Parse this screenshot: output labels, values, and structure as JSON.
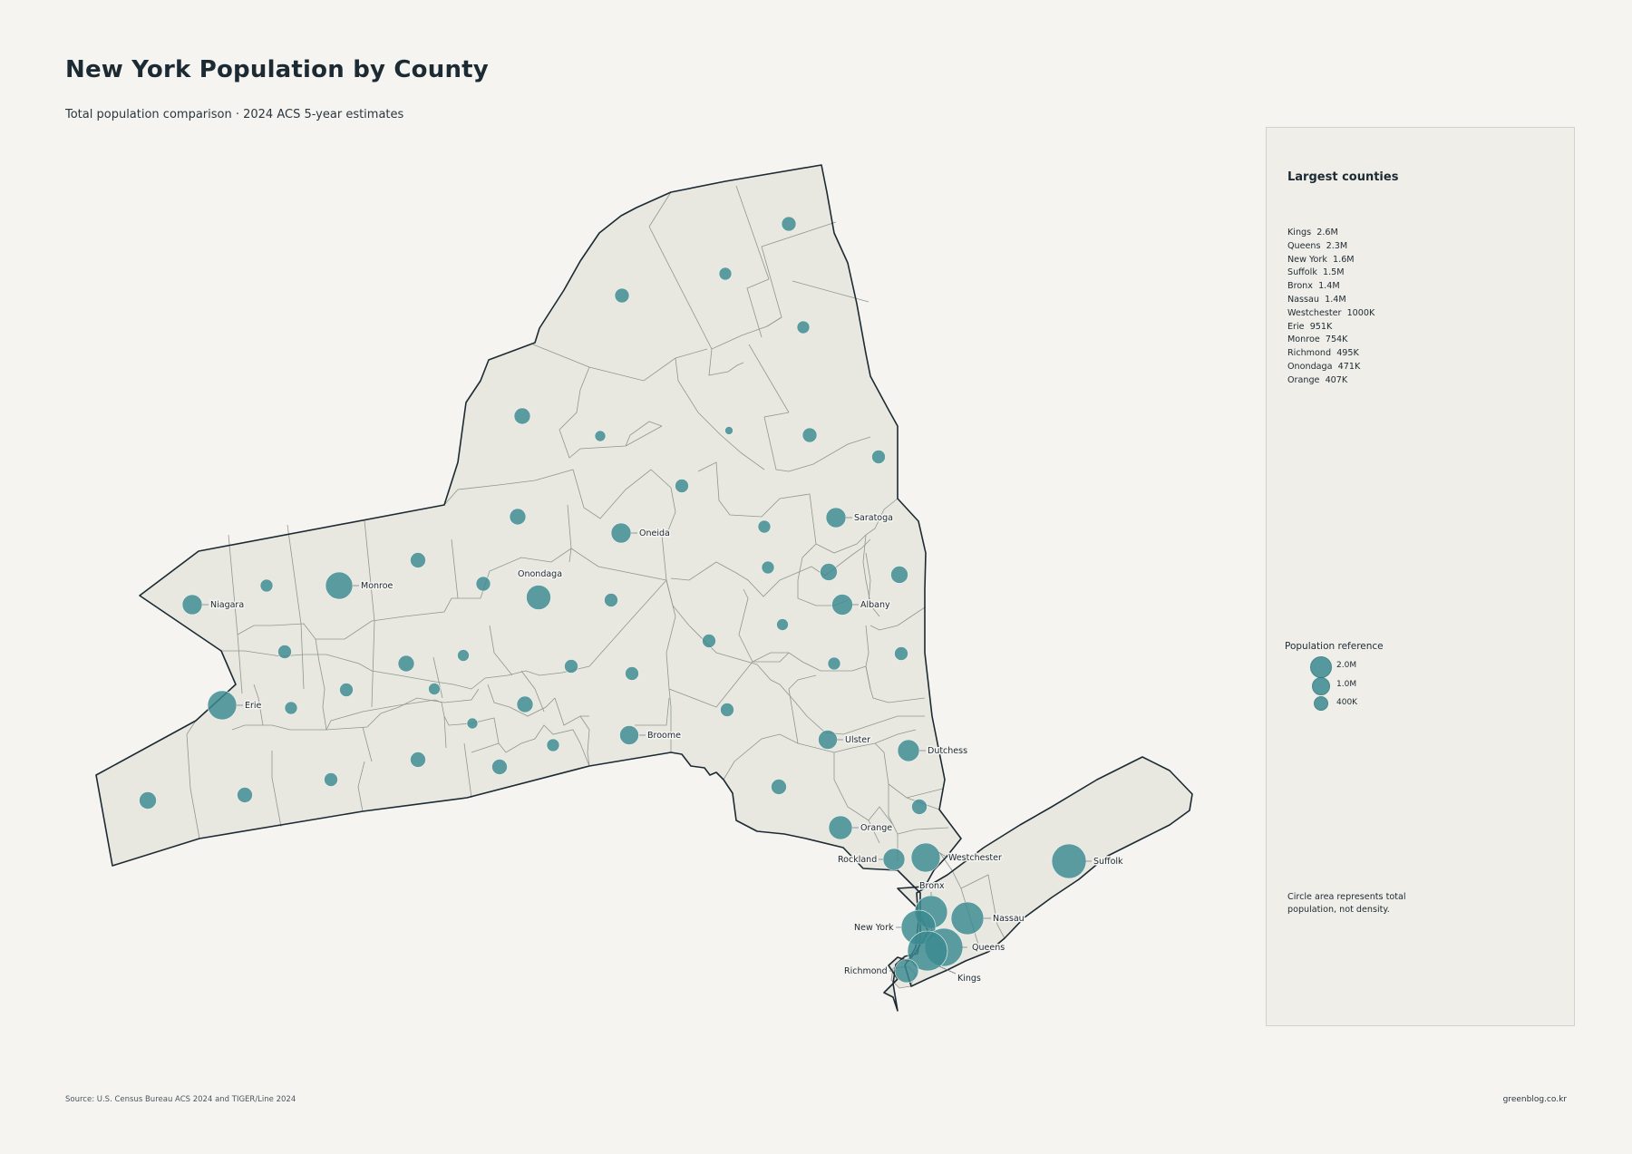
{
  "title": "New York Population by County",
  "subtitle": "Total population comparison · 2024 ACS 5-year estimates",
  "colors": {
    "background": "#f5f4f0",
    "land": "#e8e8e1",
    "bubble": "#3a8a90",
    "panel": "#f0eee9",
    "text": "#1c2a33"
  },
  "panel": {
    "title": "Largest counties",
    "ranking": [
      {
        "name": "Kings",
        "value": "2.6M"
      },
      {
        "name": "Queens",
        "value": "2.3M"
      },
      {
        "name": "New York",
        "value": "1.6M"
      },
      {
        "name": "Suffolk",
        "value": "1.5M"
      },
      {
        "name": "Bronx",
        "value": "1.4M"
      },
      {
        "name": "Nassau",
        "value": "1.4M"
      },
      {
        "name": "Westchester",
        "value": "1000K"
      },
      {
        "name": "Erie",
        "value": "951K"
      },
      {
        "name": "Monroe",
        "value": "754K"
      },
      {
        "name": "Richmond",
        "value": "495K"
      },
      {
        "name": "Onondaga",
        "value": "471K"
      },
      {
        "name": "Orange",
        "value": "407K"
      }
    ],
    "legend_title": "Population reference",
    "legend": [
      {
        "label": "2.0M",
        "population": 2000000
      },
      {
        "label": "1.0M",
        "population": 1000000
      },
      {
        "label": "400K",
        "population": 400000
      }
    ],
    "note": "Circle area represents total population, not density."
  },
  "labeled_counties": [
    "Niagara",
    "Monroe",
    "Erie",
    "Onondaga",
    "Oneida",
    "Saratoga",
    "Albany",
    "Broome",
    "Ulster",
    "Dutchess",
    "Orange",
    "Rockland",
    "Westchester",
    "Bronx",
    "Suffolk",
    "Nassau",
    "New York",
    "Queens",
    "Kings",
    "Richmond"
  ],
  "source": "Source: U.S. Census Bureau ACS 2024 and TIGER/Line 2024",
  "site": "greenblog.co.kr"
}
